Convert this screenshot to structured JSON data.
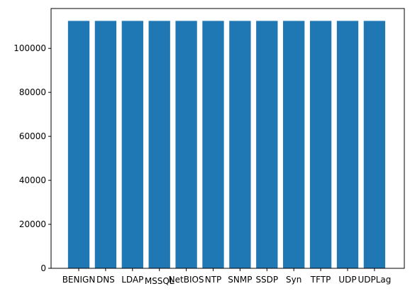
{
  "chart_data": {
    "type": "bar",
    "title": "",
    "xlabel": "",
    "ylabel": "",
    "categories": [
      "BENIGN",
      "DNS",
      "LDAP",
      "MSSQL",
      "NetBIOS",
      "NTP",
      "SNMP",
      "SSDP",
      "Syn",
      "TFTP",
      "UDP",
      "UDPLag"
    ],
    "values": [
      112500,
      112500,
      112500,
      112500,
      112500,
      112500,
      112500,
      112500,
      112500,
      112500,
      112500,
      112500
    ],
    "ylim": [
      0,
      118125
    ],
    "yticks": [
      0,
      20000,
      40000,
      60000,
      80000,
      100000
    ],
    "ytick_labels": [
      "0",
      "20000",
      "40000",
      "60000",
      "80000",
      "100000"
    ],
    "bar_color": "#1f77b4",
    "grid": false,
    "legend": "none"
  }
}
